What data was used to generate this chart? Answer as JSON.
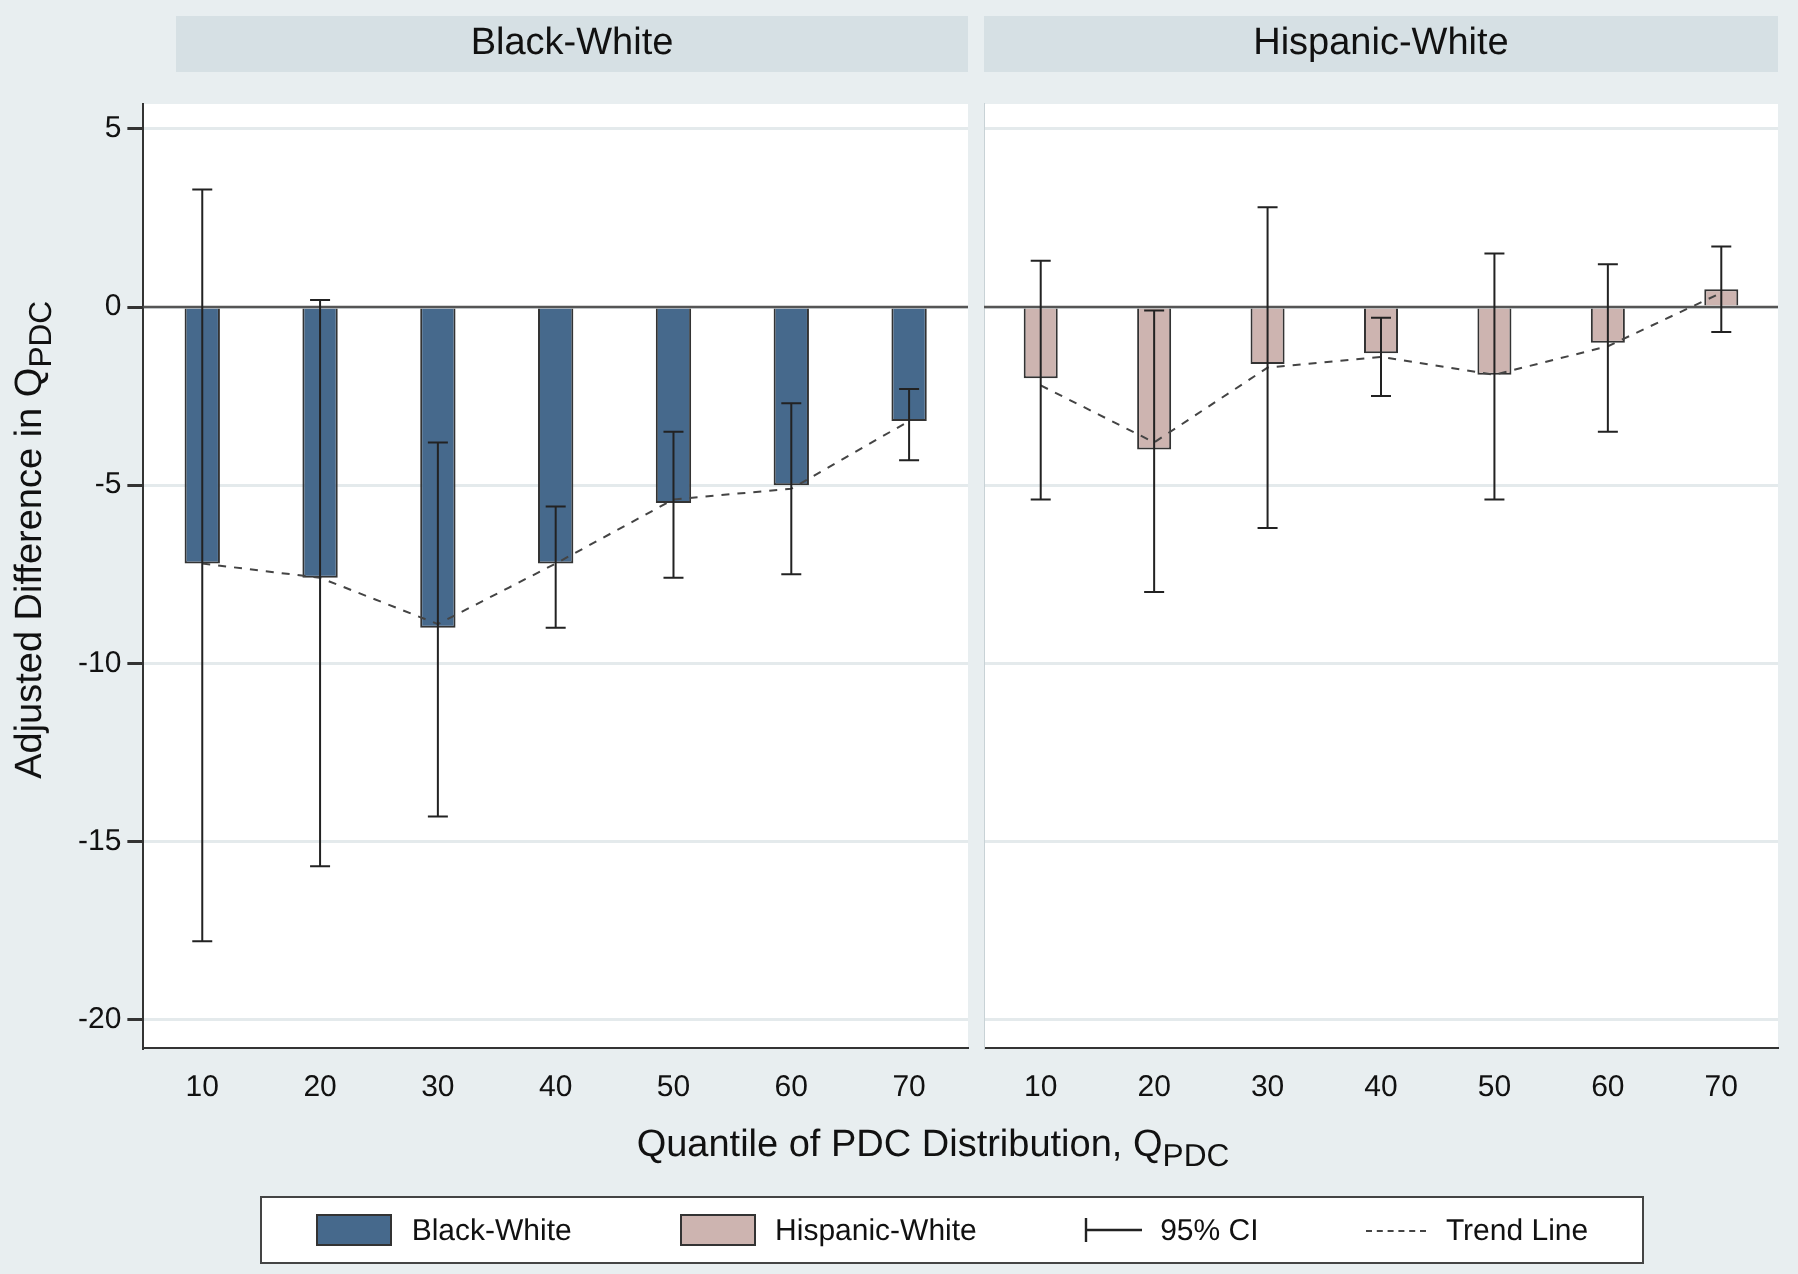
{
  "chart_data": [
    {
      "type": "bar",
      "title": "Black-White",
      "xlabel": "Quantile of PDC Distribution, Q$_{PDC}$",
      "ylabel": "Adjusted Difference in Q$_{PDC}$",
      "categories": [
        "10",
        "20",
        "30",
        "40",
        "50",
        "60",
        "70"
      ],
      "ylim": [
        -20.8,
        5.7
      ],
      "yticks": [
        5,
        0,
        -5,
        -10,
        -15,
        -20
      ],
      "grid": "y",
      "legend": "bottom",
      "annotations": [
        "95% CI"
      ],
      "ref_lines": [
        {
          "axis": "y",
          "value": 0,
          "color": "#555555"
        }
      ],
      "series": [
        {
          "name": "Black-White",
          "color": "#46698c",
          "values": [
            -7.2,
            -7.6,
            -9.0,
            -7.2,
            -5.5,
            -5.0,
            -3.2
          ],
          "errors": [
            [
              -17.8,
              3.3
            ],
            [
              -15.7,
              0.2
            ],
            [
              -14.3,
              -3.8
            ],
            [
              -9.0,
              -5.6
            ],
            [
              -7.6,
              -3.5
            ],
            [
              -7.5,
              -2.7
            ],
            [
              -4.3,
              -2.3
            ]
          ]
        },
        {
          "type": "line",
          "name": "Trend Line",
          "color": "#444444",
          "line_style": "dashed",
          "marker": "none",
          "values": [
            -7.2,
            -7.6,
            -8.9,
            -7.2,
            -5.4,
            -5.1,
            -3.2
          ]
        }
      ]
    },
    {
      "type": "bar",
      "title": "Hispanic-White",
      "categories": [
        "10",
        "20",
        "30",
        "40",
        "50",
        "60",
        "70"
      ],
      "ylim": [
        -20.8,
        5.7
      ],
      "yticks": [
        5,
        0,
        -5,
        -10,
        -15,
        -20
      ],
      "grid": "y",
      "tick_labels": "x",
      "ref_lines": [
        {
          "axis": "y",
          "value": 0,
          "color": "#555555"
        }
      ],
      "series": [
        {
          "name": "Hispanic-White",
          "color": "#cdb4b0",
          "values": [
            -2.0,
            -4.0,
            -1.6,
            -1.3,
            -1.9,
            -1.0,
            0.5
          ],
          "errors": [
            [
              -5.4,
              1.3
            ],
            [
              -8.0,
              -0.1
            ],
            [
              -6.2,
              2.8
            ],
            [
              -2.5,
              -0.3
            ],
            [
              -5.4,
              1.5
            ],
            [
              -3.5,
              1.2
            ],
            [
              -0.7,
              1.7
            ]
          ]
        },
        {
          "type": "line",
          "color": "#444444",
          "line_style": "dashed",
          "marker": "none",
          "values": [
            -2.2,
            -3.8,
            -1.7,
            -1.4,
            -1.9,
            -1.1,
            0.4
          ]
        }
      ]
    }
  ]
}
